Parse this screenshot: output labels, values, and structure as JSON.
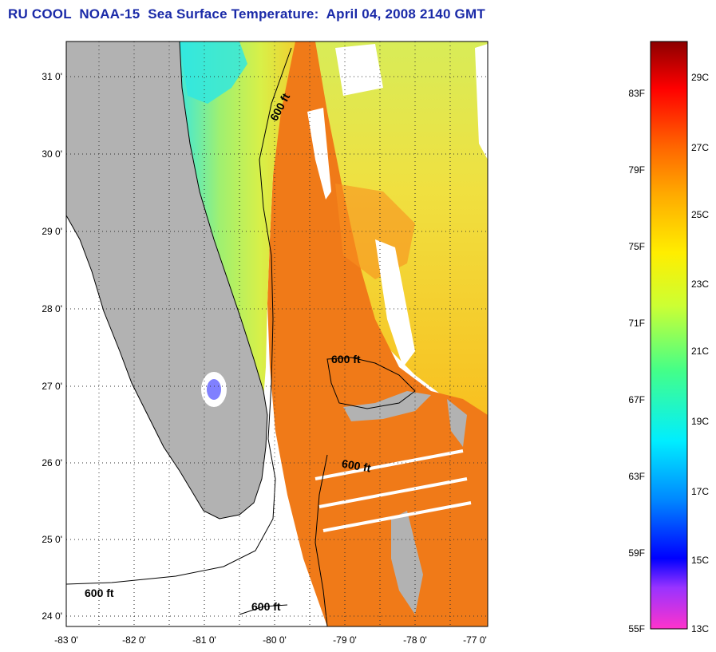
{
  "title": "RU COOL  NOAA-15  Sea Surface Temperature:  April 04, 2008 2140 GMT",
  "map": {
    "lat_ticks": [
      "31 0'",
      "30 0'",
      "29 0'",
      "28 0'",
      "27 0'",
      "26 0'",
      "25 0'",
      "24 0'"
    ],
    "lon_ticks": [
      "-83 0'",
      "-82 0'",
      "-81 0'",
      "-80 0'",
      "-79 0'",
      "-78 0'",
      "-77 0'"
    ],
    "contour_labels": [
      "600 ft",
      "600 ft",
      "600 ft",
      "600 ft",
      "600 ft"
    ],
    "colors": {
      "land": "#b2b2b2",
      "gulf_stream": "#f07a18",
      "shelf_cool": "#b8f060",
      "cloud": "#ffffff",
      "cold_nearshore": "#30e8e0"
    }
  },
  "colorbar": {
    "fahrenheit": [
      "83F",
      "79F",
      "75F",
      "71F",
      "67F",
      "63F",
      "59F",
      "55F"
    ],
    "celsius": [
      "29C",
      "27C",
      "25C",
      "23C",
      "21C",
      "19C",
      "17C",
      "15C",
      "13C"
    ],
    "gradient": [
      "#ff33cc",
      "#9933ff",
      "#0000ff",
      "#0088ff",
      "#00eeff",
      "#44ff88",
      "#ccff33",
      "#ffee00",
      "#ffaa00",
      "#ff6600",
      "#ff0000",
      "#8b0000"
    ]
  }
}
